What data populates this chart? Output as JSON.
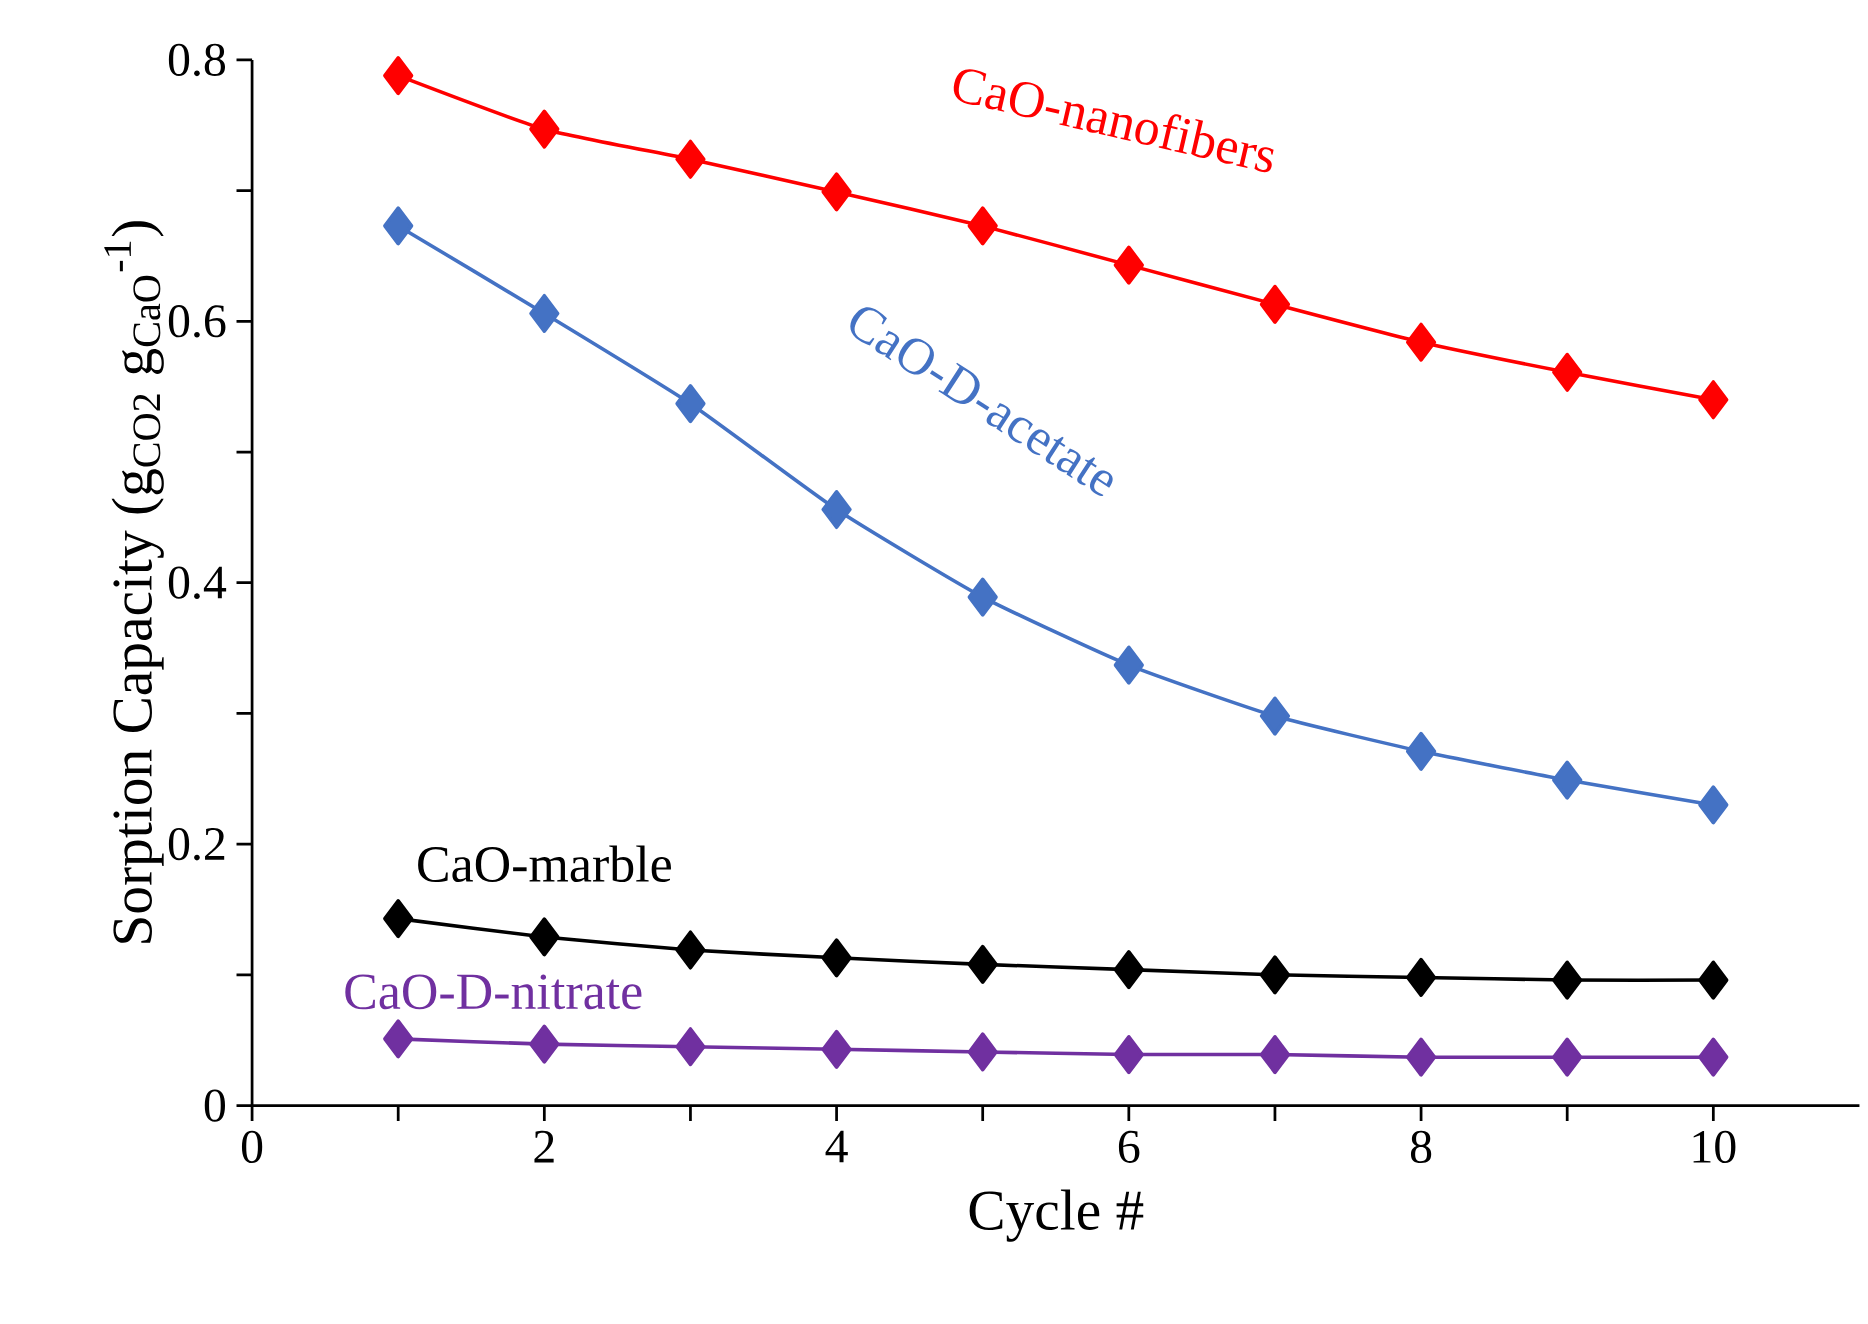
{
  "chart_data": {
    "type": "line",
    "xlabel": "Cycle #",
    "ylabel": "Sorption Capacity (g$_{CO2}$ g$_{CaO}$$^{-1}$)",
    "x": [
      1,
      2,
      3,
      4,
      5,
      6,
      7,
      8,
      9,
      10
    ],
    "series": [
      {
        "name": "CaO-nanofibers",
        "color": "#ff0000",
        "values": [
          0.788,
          0.747,
          0.724,
          0.699,
          0.673,
          0.643,
          0.613,
          0.584,
          0.561,
          0.54
        ]
      },
      {
        "name": "CaO-D-acetate",
        "color": "#4472c4",
        "values": [
          0.673,
          0.606,
          0.537,
          0.456,
          0.389,
          0.337,
          0.298,
          0.271,
          0.249,
          0.23
        ]
      },
      {
        "name": "CaO-marble",
        "color": "#000000",
        "values": [
          0.143,
          0.129,
          0.119,
          0.113,
          0.108,
          0.104,
          0.1,
          0.098,
          0.096,
          0.096
        ]
      },
      {
        "name": "CaO-D-nitrate",
        "color": "#7030a0",
        "values": [
          0.051,
          0.047,
          0.045,
          0.043,
          0.041,
          0.039,
          0.039,
          0.037,
          0.037,
          0.037
        ]
      }
    ],
    "xlim": [
      0,
      11
    ],
    "xticks": [
      0,
      {
        "value": 1,
        "label": null
      },
      2,
      {
        "value": 3,
        "label": null
      },
      4,
      {
        "value": 5,
        "label": null
      },
      6,
      {
        "value": 7,
        "label": null
      },
      8,
      {
        "value": 9,
        "label": null
      },
      10
    ],
    "ylim": [
      0,
      0.8
    ],
    "yticks": [
      0,
      {
        "value": 0.1,
        "label": null
      },
      0.2,
      {
        "value": 0.3,
        "label": null
      },
      0.4,
      {
        "value": 0.5,
        "label": null
      },
      0.6,
      {
        "value": 0.7,
        "label": null
      },
      0.8
    ],
    "grid": false,
    "legend": false,
    "marker": "diamond",
    "line_style": "solid"
  }
}
